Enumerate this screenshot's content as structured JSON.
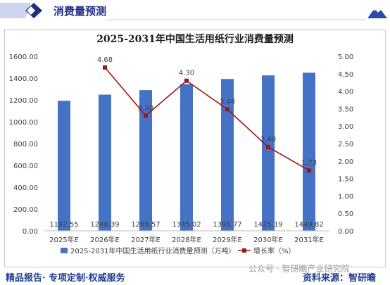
{
  "header": {
    "title": "消费量预测",
    "logo_icon": "blue-diamond-icon",
    "mark_icon": "mountain-logo-icon"
  },
  "footer": {
    "left": "精品报告· 专项定制·权威服务",
    "right": "资料来源：智研瞻",
    "watermark": "公众号 · 智研瞻产业研究院"
  },
  "colors": {
    "bar": "#4472c4",
    "line": "#a31515",
    "header_blue": "#1f2f86",
    "footer_blue": "#1f3f8f"
  },
  "chart_data": {
    "type": "bar",
    "title": "2025-2031年中国生活用纸行业消费量预测",
    "categories": [
      "2025年E",
      "2026年E",
      "2027年E",
      "2028年E",
      "2029年E",
      "2030年E",
      "2031年E"
    ],
    "y_ticks": [
      "0.00",
      "200.00",
      "400.00",
      "600.00",
      "800.00",
      "1000.00",
      "1200.00",
      "1400.00",
      "1600.00"
    ],
    "y2_ticks": [
      "0.00",
      "0.50",
      "1.00",
      "1.50",
      "2.00",
      "2.50",
      "3.00",
      "3.50",
      "4.00",
      "4.50",
      "5.00"
    ],
    "ylim": [
      0,
      1600
    ],
    "y2lim": [
      0,
      5
    ],
    "series": [
      {
        "name": "2025-2031年中国生活用纸行业消费量预测（万吨）",
        "type": "bar",
        "values": [
          1192.55,
          1248.39,
          1289.57,
          1345.02,
          1391.77,
          1425.19,
          1449.82
        ],
        "labels": [
          "1192.55",
          "1248.39",
          "1289.57",
          "1345.02",
          "1391.77",
          "1425.19",
          "1449.82"
        ]
      },
      {
        "name": "增长率（%）",
        "type": "line",
        "axis": "right",
        "values": [
          null,
          4.68,
          3.3,
          4.3,
          3.48,
          2.4,
          1.73
        ],
        "labels": [
          "",
          "4.68",
          "3.30",
          "4.30",
          "3.48",
          "2.40",
          "1.73"
        ]
      }
    ],
    "legend": "bottom",
    "grid": false
  }
}
